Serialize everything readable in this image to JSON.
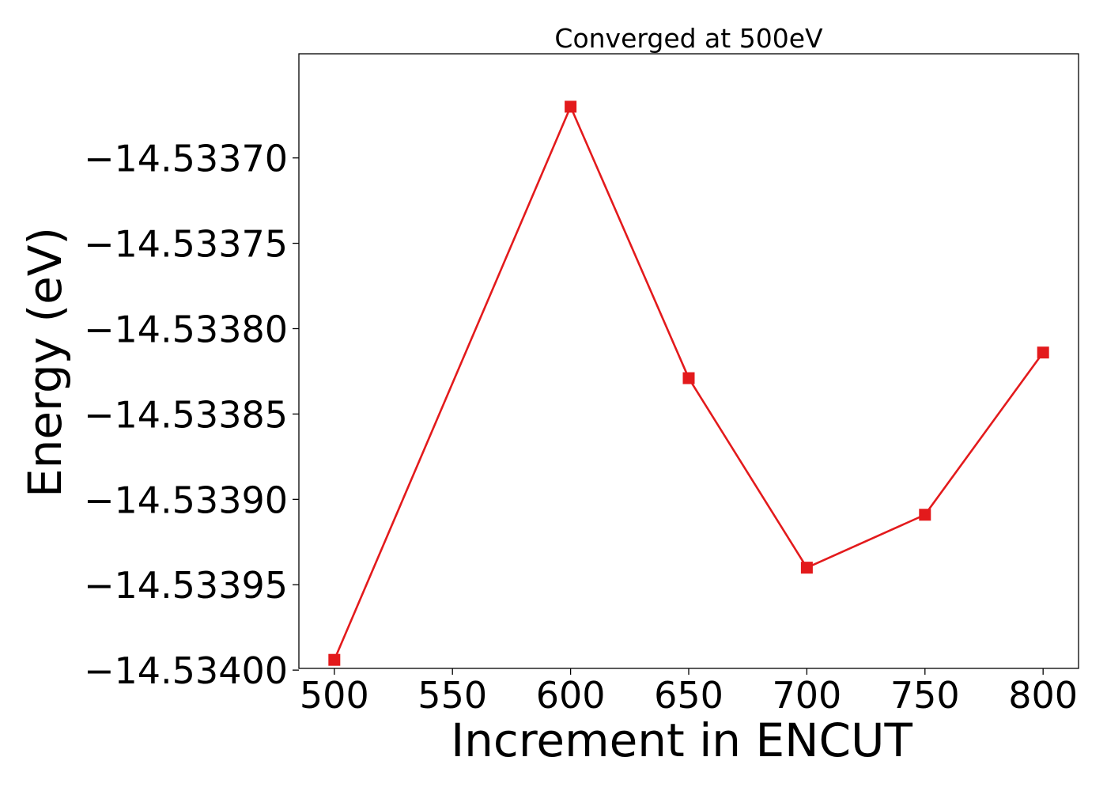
{
  "chart_data": {
    "type": "line",
    "title": "Converged at 500eV",
    "xlabel": "Increment in ENCUT",
    "ylabel": "Energy (eV)",
    "x": [
      500,
      600,
      650,
      700,
      750,
      800
    ],
    "series": [
      {
        "values": [
          -14.533994,
          -14.53367,
          -14.533829,
          -14.53394,
          -14.533909,
          -14.533814
        ],
        "color": "#e31a1c",
        "marker": "square"
      }
    ],
    "xticks": [
      500,
      550,
      600,
      650,
      700,
      750,
      800
    ],
    "xtick_labels": [
      "500",
      "550",
      "600",
      "650",
      "700",
      "750",
      "800"
    ],
    "yticks": [
      -14.5337,
      -14.53375,
      -14.5338,
      -14.53385,
      -14.5339,
      -14.53395,
      -14.534
    ],
    "ytick_labels": [
      "−14.53370",
      "−14.53375",
      "−14.53380",
      "−14.53385",
      "−14.53390",
      "−14.53395",
      "−14.53400"
    ],
    "xlim": [
      485,
      815
    ],
    "ylim": [
      -14.533999,
      -14.533639
    ],
    "grid": false,
    "legend": false
  }
}
